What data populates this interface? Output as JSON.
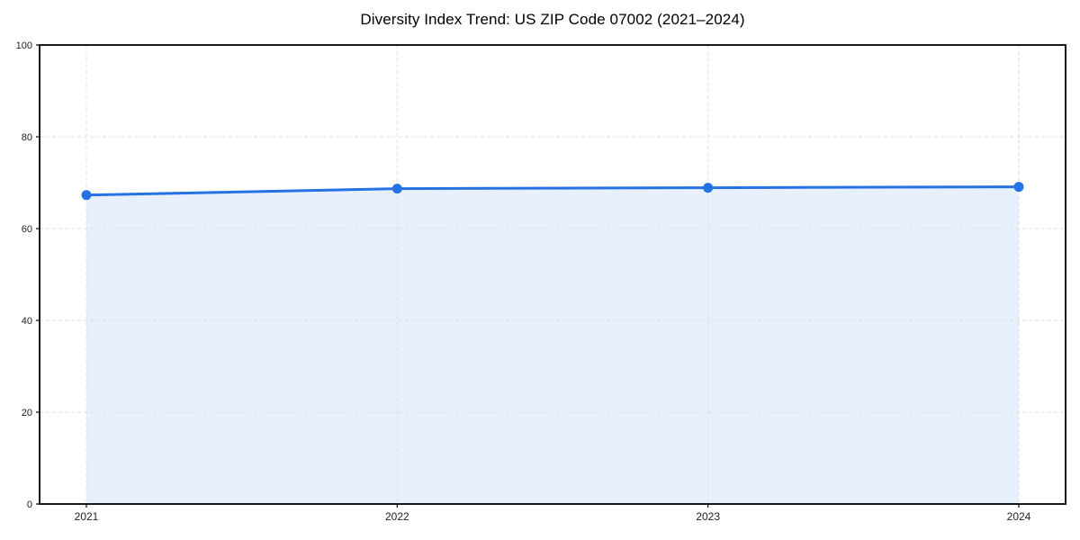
{
  "figure": {
    "background": "#ffffff"
  },
  "chart_data": {
    "type": "area",
    "title": "Diversity Index Trend: US ZIP Code 07002 (2021–2024)",
    "categories": [
      "2021",
      "2022",
      "2023",
      "2024"
    ],
    "series": [
      {
        "name": "Diversity Index",
        "values": [
          67.3,
          68.7,
          68.9,
          69.1
        ]
      }
    ],
    "xlabel": "",
    "ylabel": "",
    "ylim": [
      0,
      100
    ],
    "yticks": [
      0,
      20,
      40,
      60,
      80,
      100
    ],
    "grid": true,
    "grid_style": "dashed",
    "legend": false,
    "marker": "circle",
    "colors": {
      "line": "#2472e4",
      "marker": "#2472e4",
      "fill": "#2472e4",
      "fill_opacity": 0.11,
      "grid": "#dedede",
      "axis": "#000000",
      "tick_label": "#222222",
      "title": "#000000"
    }
  }
}
